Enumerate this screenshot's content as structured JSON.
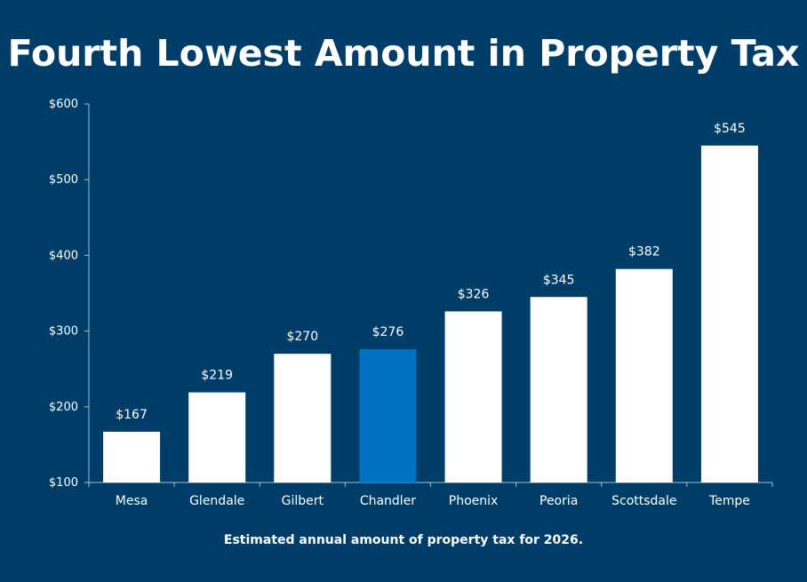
{
  "title": "Fourth Lowest Amount in Property Tax",
  "caption": "Estimated annual amount of property tax for 2026.",
  "colors": {
    "background": "#003e69",
    "bar": "#ffffff",
    "highlight_bar": "#0070c0",
    "axis": "#a9bccb",
    "text": "#ffffff"
  },
  "chart_data": {
    "type": "bar",
    "title": "Fourth Lowest Amount in Property Tax",
    "xlabel": "",
    "ylabel": "",
    "categories": [
      "Mesa",
      "Glendale",
      "Gilbert",
      "Chandler",
      "Phoenix",
      "Peoria",
      "Scottsdale",
      "Tempe"
    ],
    "values": [
      167,
      219,
      270,
      276,
      326,
      345,
      382,
      545
    ],
    "value_labels": [
      "$167",
      "$219",
      "$270",
      "$276",
      "$326",
      "$345",
      "$382",
      "$545"
    ],
    "highlight_category": "Chandler",
    "ylim": [
      100,
      600
    ],
    "yticks": [
      100,
      200,
      300,
      400,
      500,
      600
    ],
    "ytick_labels": [
      "$100",
      "$200",
      "$300",
      "$400",
      "$500",
      "$600"
    ],
    "grid": false,
    "legend": "none"
  }
}
